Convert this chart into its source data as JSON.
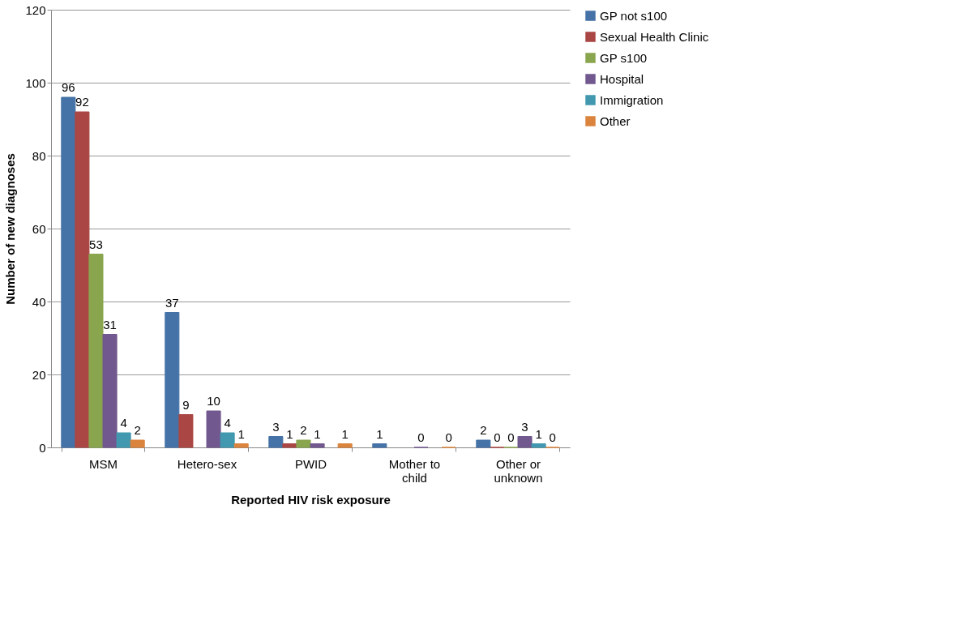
{
  "chart_data": {
    "type": "bar",
    "xlabel": "Reported HIV risk exposure",
    "ylabel": "Number of new diagnoses",
    "categories": [
      "MSM",
      "Hetero-sex",
      "PWID",
      "Mother to child",
      "Other or unknown"
    ],
    "series": [
      {
        "name": "GP not s100",
        "color": "#4572a7",
        "values": [
          96,
          37,
          3,
          1,
          2
        ]
      },
      {
        "name": "Sexual Health Clinic",
        "color": "#aa4643",
        "values": [
          92,
          9,
          1,
          null,
          0
        ]
      },
      {
        "name": "GP s100",
        "color": "#89a54e",
        "values": [
          53,
          null,
          2,
          null,
          0
        ]
      },
      {
        "name": "Hospital",
        "color": "#71588f",
        "values": [
          31,
          10,
          1,
          0,
          3
        ]
      },
      {
        "name": "Immigration",
        "color": "#4198af",
        "values": [
          4,
          4,
          null,
          null,
          1
        ]
      },
      {
        "name": "Other",
        "color": "#db843d",
        "values": [
          2,
          1,
          1,
          0,
          0
        ]
      }
    ],
    "ylim": [
      0,
      120
    ],
    "yticks": [
      0,
      20,
      40,
      60,
      80,
      100,
      120
    ],
    "grid": "y",
    "legend": "right",
    "data_labels": true
  }
}
